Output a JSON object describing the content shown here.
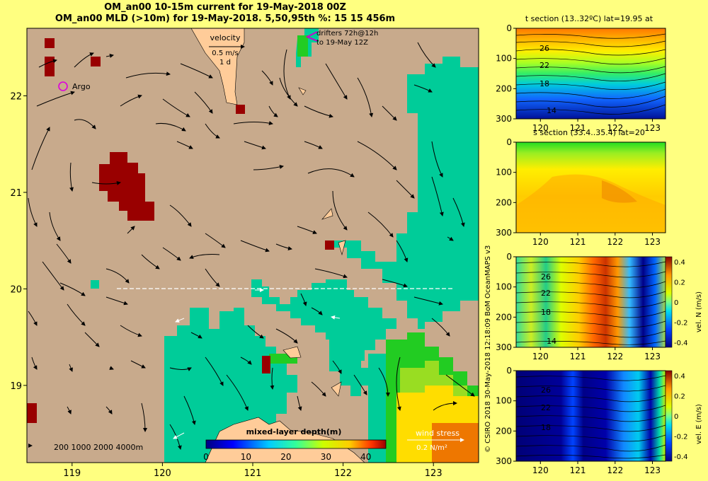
{
  "header": {
    "line1": "OM_an00 10-15m current for 19-May-2018 00Z",
    "line2": "OM_an00 MLD (>10m) for 19-May-2018. 5,50,95th %: 15   15  456m"
  },
  "credit": "© CSIRO 2018  30-May-2018 12:18:09 BoM OceanMAPS v3",
  "colors": {
    "page_bg": "#ffff80",
    "land": "#c8aa8c",
    "mld_low": "#00cc99",
    "mld_high": "#990000",
    "arrow": "#000000"
  },
  "chart_data": [
    {
      "type": "heatmap",
      "title": "OM_an00 MLD (>10m) for 19-May-2018",
      "x_ticks": [
        "119",
        "120",
        "121",
        "122",
        "123"
      ],
      "y_ticks": [
        "19",
        "20",
        "21",
        "22"
      ],
      "xlim": [
        118.5,
        123.5
      ],
      "ylim": [
        18.2,
        22.7
      ],
      "annotations": {
        "velocity_title": "velocity",
        "velocity_scale": "0.5 m/s",
        "velocity_time": "1 d",
        "drifters_line1": "drifters 72h@12h",
        "drifters_line2": "to 19-May 12Z",
        "argo": "Argo",
        "depth_legend": "200  1000  2000  4000m",
        "wind_title": "wind stress",
        "wind_scale": "0.2 N/m²"
      },
      "colorbar": {
        "label": "mixed-layer depth(m)",
        "ticks": [
          "0",
          "10",
          "20",
          "30",
          "40"
        ],
        "range": [
          0,
          45
        ]
      }
    },
    {
      "type": "heatmap",
      "title": "t section (13..32ºC) lat=19.95 at",
      "x_ticks": [
        "120",
        "121",
        "122",
        "123"
      ],
      "y_ticks": [
        "0",
        "100",
        "200",
        "300"
      ],
      "contour_labels": [
        "26",
        "22",
        "18",
        "14"
      ]
    },
    {
      "type": "heatmap",
      "title": "s section (33.4..35.4) lat=20",
      "x_ticks": [
        "120",
        "121",
        "122",
        "123"
      ],
      "y_ticks": [
        "0",
        "100",
        "200",
        "300"
      ]
    },
    {
      "type": "heatmap",
      "title": "",
      "x_ticks": [
        "120",
        "121",
        "122",
        "123"
      ],
      "y_ticks": [
        "0",
        "100",
        "200",
        "300"
      ],
      "contour_labels": [
        "26",
        "22",
        "18",
        "14"
      ],
      "colorbar": {
        "label": "vel. N (m/s)",
        "ticks": [
          "0.4",
          "0.2",
          "0",
          "-0.2",
          "-0.4"
        ]
      }
    },
    {
      "type": "heatmap",
      "title": "",
      "x_ticks": [
        "120",
        "121",
        "122",
        "123"
      ],
      "y_ticks": [
        "0",
        "100",
        "200",
        "300"
      ],
      "contour_labels": [
        "26",
        "22",
        "18"
      ],
      "colorbar": {
        "label": "vel. E (m/s)",
        "ticks": [
          "0.4",
          "0.2",
          "0",
          "-0.2",
          "-0.4"
        ]
      }
    }
  ]
}
